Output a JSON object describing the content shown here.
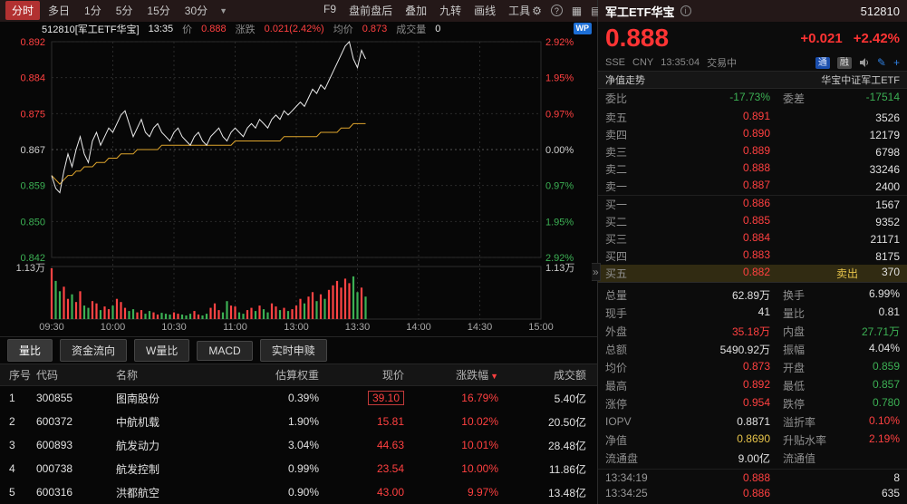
{
  "toolbar": {
    "period_tabs": [
      "分时",
      "多日",
      "1分",
      "5分",
      "15分",
      "30分"
    ],
    "selected_period": "分时",
    "menu_items": [
      "F9",
      "盘前盘后",
      "叠加",
      "九转",
      "画线",
      "工具"
    ]
  },
  "icons": {
    "caret": "▼",
    "gear": "⚙",
    "help": "?",
    "grid": "▦",
    "list": "▤",
    "sort_desc": "▼",
    "collapse": "»",
    "info": "i",
    "edit": "✎",
    "plus": "+"
  },
  "chart_info": {
    "instrument": "512810[军工ETF华宝]",
    "time": "13:35",
    "price_label": "价",
    "price": "0.888",
    "change_label": "涨跌",
    "change": "0.021(2.42%)",
    "avg_label": "均价",
    "avg": "0.873",
    "volume_label": "成交量",
    "volume": "0",
    "logo": "WP"
  },
  "chart_data": {
    "type": "line",
    "title": "512810 军工ETF华宝 分时走势",
    "x_tick_labels": [
      "09:30",
      "10:00",
      "10:30",
      "11:00",
      "13:00",
      "13:30",
      "14:00",
      "14:30",
      "15:00"
    ],
    "left_axis_prices": [
      "0.892",
      "0.884",
      "0.875",
      "0.867",
      "0.859",
      "0.850",
      "0.842"
    ],
    "right_axis_pcts": [
      "2.92%",
      "1.95%",
      "0.97%",
      "0.00%",
      "0.97%",
      "1.95%",
      "2.92%"
    ],
    "volume_max_label": "1.13万",
    "prev_close": 0.867,
    "ylim": [
      0.842,
      0.892
    ],
    "session_minutes": 240,
    "step_minutes": 2,
    "grid": true,
    "series": [
      {
        "name": "价格",
        "color": "#ececec",
        "values": [
          0.861,
          0.858,
          0.857,
          0.862,
          0.866,
          0.863,
          0.867,
          0.87,
          0.866,
          0.864,
          0.869,
          0.871,
          0.868,
          0.87,
          0.872,
          0.871,
          0.873,
          0.875,
          0.876,
          0.873,
          0.87,
          0.872,
          0.874,
          0.871,
          0.87,
          0.872,
          0.873,
          0.871,
          0.87,
          0.869,
          0.871,
          0.872,
          0.87,
          0.869,
          0.868,
          0.87,
          0.871,
          0.869,
          0.868,
          0.87,
          0.871,
          0.872,
          0.87,
          0.869,
          0.871,
          0.872,
          0.871,
          0.87,
          0.872,
          0.873,
          0.872,
          0.874,
          0.873,
          0.872,
          0.874,
          0.875,
          0.874,
          0.876,
          0.875,
          0.876,
          0.877,
          0.878,
          0.877,
          0.879,
          0.881,
          0.88,
          0.882,
          0.881,
          0.883,
          0.885,
          0.887,
          0.889,
          0.891,
          0.892,
          0.888,
          0.886,
          0.89,
          0.888
        ]
      },
      {
        "name": "均价",
        "color": "#dfa52c",
        "values": [
          0.861,
          0.86,
          0.859,
          0.86,
          0.861,
          0.861,
          0.862,
          0.862,
          0.863,
          0.863,
          0.863,
          0.864,
          0.864,
          0.864,
          0.865,
          0.865,
          0.865,
          0.866,
          0.866,
          0.866,
          0.866,
          0.867,
          0.867,
          0.867,
          0.867,
          0.867,
          0.867,
          0.868,
          0.868,
          0.868,
          0.868,
          0.868,
          0.868,
          0.868,
          0.868,
          0.868,
          0.868,
          0.868,
          0.868,
          0.868,
          0.868,
          0.868,
          0.868,
          0.868,
          0.868,
          0.869,
          0.869,
          0.869,
          0.869,
          0.869,
          0.869,
          0.869,
          0.869,
          0.869,
          0.869,
          0.869,
          0.869,
          0.87,
          0.87,
          0.87,
          0.87,
          0.87,
          0.87,
          0.87,
          0.87,
          0.87,
          0.871,
          0.871,
          0.871,
          0.871,
          0.871,
          0.872,
          0.872,
          0.872,
          0.873,
          0.873,
          0.873,
          0.873
        ]
      }
    ],
    "volume": {
      "unit": "万",
      "max": 1.13,
      "up_color": "#ff4444",
      "down_color": "#3cb054",
      "values": [
        1.13,
        0.85,
        0.62,
        0.72,
        0.45,
        0.55,
        0.38,
        0.62,
        0.3,
        0.25,
        0.4,
        0.35,
        0.2,
        0.28,
        0.22,
        0.3,
        0.45,
        0.38,
        0.25,
        0.18,
        0.22,
        0.15,
        0.2,
        0.12,
        0.18,
        0.15,
        0.1,
        0.14,
        0.12,
        0.1,
        0.15,
        0.12,
        0.1,
        0.08,
        0.12,
        0.18,
        0.1,
        0.08,
        0.12,
        0.25,
        0.35,
        0.2,
        0.15,
        0.4,
        0.3,
        0.28,
        0.15,
        0.12,
        0.2,
        0.25,
        0.18,
        0.3,
        0.22,
        0.15,
        0.35,
        0.28,
        0.2,
        0.25,
        0.18,
        0.22,
        0.3,
        0.45,
        0.35,
        0.5,
        0.6,
        0.4,
        0.55,
        0.45,
        0.65,
        0.75,
        0.85,
        0.7,
        0.9,
        0.8,
        0.95,
        0.6,
        0.7,
        0.5
      ]
    }
  },
  "tabs": [
    "量比",
    "资金流向",
    "W量比",
    "MACD",
    "实时申赎"
  ],
  "holdings_table": {
    "headers": [
      "序号",
      "代码",
      "名称",
      "估算权重",
      "现价",
      "涨跌幅",
      "成交额"
    ],
    "rows": [
      {
        "seq": "1",
        "code": "300855",
        "name": "图南股份",
        "weight": "0.39%",
        "price": "39.10",
        "change": "16.79%",
        "turnover": "5.40亿"
      },
      {
        "seq": "2",
        "code": "600372",
        "name": "中航机载",
        "weight": "1.90%",
        "price": "15.81",
        "change": "10.02%",
        "turnover": "20.50亿"
      },
      {
        "seq": "3",
        "code": "600893",
        "name": "航发动力",
        "weight": "3.04%",
        "price": "44.63",
        "change": "10.01%",
        "turnover": "28.48亿"
      },
      {
        "seq": "4",
        "code": "000738",
        "name": "航发控制",
        "weight": "0.99%",
        "price": "23.54",
        "change": "10.00%",
        "turnover": "11.86亿"
      },
      {
        "seq": "5",
        "code": "600316",
        "name": "洪都航空",
        "weight": "0.90%",
        "price": "43.00",
        "change": "9.97%",
        "turnover": "13.48亿"
      }
    ]
  },
  "quote_panel": {
    "name": "军工ETF华宝",
    "code": "512810",
    "last": "0.888",
    "change": "+0.021",
    "change_pct": "+2.42%",
    "exchange": "SSE",
    "currency": "CNY",
    "time": "13:35:04",
    "status": "交易中",
    "badges": [
      "通",
      "融"
    ],
    "nav_left": "净值走势",
    "nav_right": "华宝中证军工ETF",
    "weibi_label": "委比",
    "weibi": "-17.73%",
    "weicha_label": "委差",
    "weicha": "-17514",
    "asks": [
      {
        "label": "卖五",
        "price": "0.891",
        "vol": "3526"
      },
      {
        "label": "卖四",
        "price": "0.890",
        "vol": "12179"
      },
      {
        "label": "卖三",
        "price": "0.889",
        "vol": "6798"
      },
      {
        "label": "卖二",
        "price": "0.888",
        "vol": "33246"
      },
      {
        "label": "卖一",
        "price": "0.887",
        "vol": "2400"
      }
    ],
    "bids": [
      {
        "label": "买一",
        "price": "0.886",
        "vol": "1567"
      },
      {
        "label": "买二",
        "price": "0.885",
        "vol": "9352"
      },
      {
        "label": "买三",
        "price": "0.884",
        "vol": "21171"
      },
      {
        "label": "买四",
        "price": "0.883",
        "vol": "8175"
      },
      {
        "label": "买五",
        "price": "0.882",
        "vol": "370",
        "flash": "卖出"
      }
    ],
    "stats": [
      {
        "l1": "总量",
        "v1": "62.89万",
        "c1": "w",
        "l2": "换手",
        "v2": "6.99%",
        "c2": "w"
      },
      {
        "l1": "现手",
        "v1": "41",
        "c1": "w",
        "l2": "量比",
        "v2": "0.81",
        "c2": "w"
      },
      {
        "l1": "外盘",
        "v1": "35.18万",
        "c1": "r",
        "l2": "内盘",
        "v2": "27.71万",
        "c2": "g"
      },
      {
        "l1": "总额",
        "v1": "5490.92万",
        "c1": "w",
        "l2": "振幅",
        "v2": "4.04%",
        "c2": "w"
      },
      {
        "l1": "均价",
        "v1": "0.873",
        "c1": "r",
        "l2": "开盘",
        "v2": "0.859",
        "c2": "g"
      },
      {
        "l1": "最高",
        "v1": "0.892",
        "c1": "r",
        "l2": "最低",
        "v2": "0.857",
        "c2": "g"
      },
      {
        "l1": "涨停",
        "v1": "0.954",
        "c1": "r",
        "l2": "跌停",
        "v2": "0.780",
        "c2": "g"
      },
      {
        "l1": "IOPV",
        "v1": "0.8871",
        "c1": "w",
        "l2": "溢折率",
        "v2": "0.10%",
        "c2": "r"
      },
      {
        "l1": "净值",
        "v1": "0.8690",
        "c1": "y",
        "l2": "升贴水率",
        "v2": "2.19%",
        "c2": "r"
      },
      {
        "l1": "流通盘",
        "v1": "9.00亿",
        "c1": "w",
        "l2": "流通值",
        "v2": "",
        "c2": "w"
      }
    ],
    "ticks": [
      {
        "t": "13:34:19",
        "p": "0.888",
        "pc": "r",
        "v": "8",
        "vc": "w"
      },
      {
        "t": "13:34:25",
        "p": "0.886",
        "pc": "r",
        "v": "635",
        "vc": "w"
      }
    ]
  }
}
